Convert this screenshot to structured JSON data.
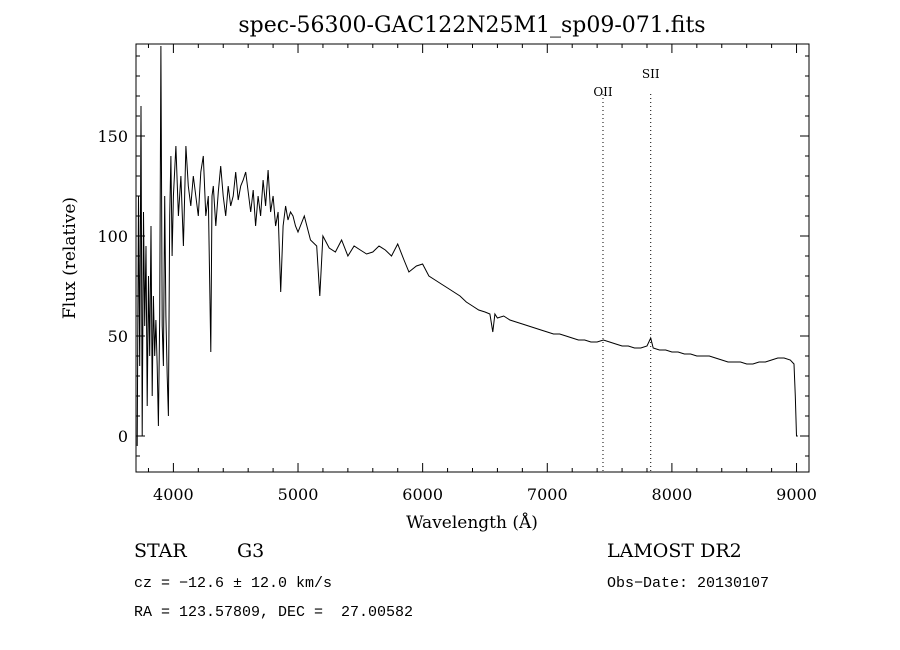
{
  "chart_data": {
    "type": "line",
    "title": "spec-56300-GAC122N25M1_sp09-071.fits",
    "xlabel": "Wavelength (Å)",
    "ylabel": "Flux (relative)",
    "xlim": [
      3700,
      9100
    ],
    "ylim": [
      -18,
      196
    ],
    "xticks": [
      4000,
      5000,
      6000,
      7000,
      8000,
      9000
    ],
    "yticks": [
      0,
      50,
      100,
      150
    ],
    "grid": false,
    "lines": [
      {
        "label": "OII",
        "x": 7447
      },
      {
        "label": "SII",
        "x": 7830
      }
    ],
    "series": [
      {
        "x": [
          3710,
          3720,
          3730,
          3740,
          3750,
          3760,
          3770,
          3780,
          3790,
          3800,
          3810,
          3820,
          3830,
          3840,
          3850,
          3860,
          3870,
          3880,
          3890,
          3900,
          3910,
          3920,
          3930,
          3940,
          3950,
          3960,
          3970,
          3980,
          3990,
          4000,
          4020,
          4040,
          4060,
          4080,
          4100,
          4120,
          4140,
          4160,
          4180,
          4200,
          4220,
          4240,
          4260,
          4280,
          4300,
          4310,
          4320,
          4340,
          4360,
          4380,
          4400,
          4420,
          4440,
          4460,
          4480,
          4500,
          4520,
          4540,
          4560,
          4580,
          4600,
          4620,
          4640,
          4660,
          4680,
          4700,
          4720,
          4740,
          4760,
          4780,
          4800,
          4820,
          4840,
          4861,
          4880,
          4900,
          4920,
          4940,
          4960,
          4980,
          5000,
          5050,
          5100,
          5150,
          5175,
          5200,
          5250,
          5300,
          5350,
          5400,
          5450,
          5500,
          5550,
          5600,
          5650,
          5700,
          5750,
          5800,
          5850,
          5890,
          5950,
          6000,
          6050,
          6100,
          6150,
          6200,
          6250,
          6300,
          6350,
          6400,
          6450,
          6500,
          6540,
          6563,
          6580,
          6600,
          6650,
          6700,
          6750,
          6800,
          6850,
          6900,
          6950,
          7000,
          7050,
          7100,
          7150,
          7200,
          7250,
          7300,
          7350,
          7400,
          7450,
          7500,
          7550,
          7600,
          7650,
          7700,
          7750,
          7800,
          7830,
          7850,
          7900,
          7950,
          8000,
          8050,
          8100,
          8150,
          8200,
          8250,
          8300,
          8350,
          8400,
          8450,
          8500,
          8550,
          8600,
          8650,
          8700,
          8750,
          8800,
          8850,
          8900,
          8950,
          8980,
          8990,
          9000,
          9010
        ],
        "y": [
          -5,
          120,
          35,
          165,
          0,
          112,
          55,
          95,
          15,
          80,
          40,
          105,
          20,
          70,
          40,
          58,
          35,
          5,
          60,
          195,
          55,
          35,
          120,
          60,
          30,
          10,
          110,
          140,
          90,
          120,
          145,
          110,
          130,
          95,
          145,
          125,
          115,
          130,
          120,
          110,
          132,
          140,
          110,
          120,
          42,
          120,
          125,
          105,
          122,
          135,
          120,
          110,
          125,
          115,
          120,
          132,
          118,
          125,
          128,
          132,
          122,
          112,
          123,
          105,
          120,
          110,
          128,
          115,
          133,
          112,
          120,
          105,
          112,
          72,
          105,
          115,
          108,
          112,
          110,
          105,
          102,
          110,
          98,
          95,
          70,
          100,
          94,
          92,
          98,
          90,
          95,
          93,
          91,
          92,
          95,
          93,
          90,
          96,
          88,
          82,
          85,
          86,
          80,
          78,
          76,
          74,
          72,
          70,
          67,
          65,
          63,
          62,
          61,
          52,
          61,
          59,
          60,
          58,
          57,
          56,
          55,
          54,
          53,
          52,
          51,
          51,
          50,
          49,
          48,
          48,
          47,
          47,
          48,
          47,
          46,
          45,
          45,
          44,
          44,
          45,
          49,
          44,
          43,
          43,
          42,
          42,
          41,
          41,
          40,
          40,
          40,
          39,
          38,
          37,
          37,
          37,
          36,
          36,
          37,
          37,
          38,
          39,
          39,
          38,
          36,
          20,
          0,
          0
        ]
      }
    ]
  },
  "info": {
    "object_class": "STAR",
    "subclass": "G3",
    "survey": "LAMOST DR2",
    "cz_text": "cz = −12.6 ± 12.0 km/s",
    "obs_date": "Obs−Date: 20130107",
    "coords": "RA = 123.57809, DEC =  27.00582"
  }
}
